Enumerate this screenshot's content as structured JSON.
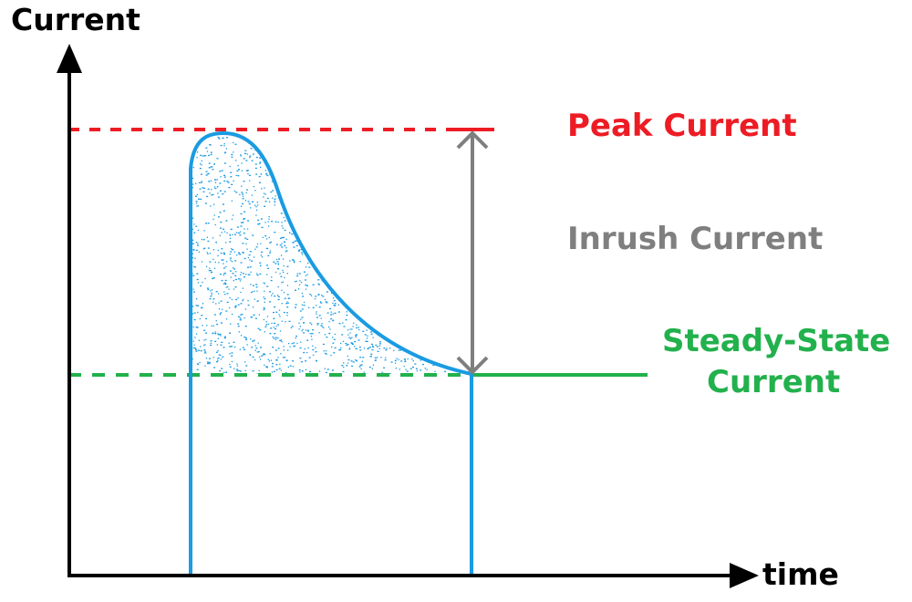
{
  "labels": {
    "y_axis": "Current",
    "x_axis": "time",
    "peak": "Peak Current",
    "inrush": "Inrush Current",
    "steady_line1": "Steady-State",
    "steady_line2": "Current"
  },
  "colors": {
    "axis": "#000000",
    "curve": "#1a9be2",
    "peak": "#ed1c24",
    "steady": "#22b14c",
    "inrush": "#7f7f7f"
  }
}
